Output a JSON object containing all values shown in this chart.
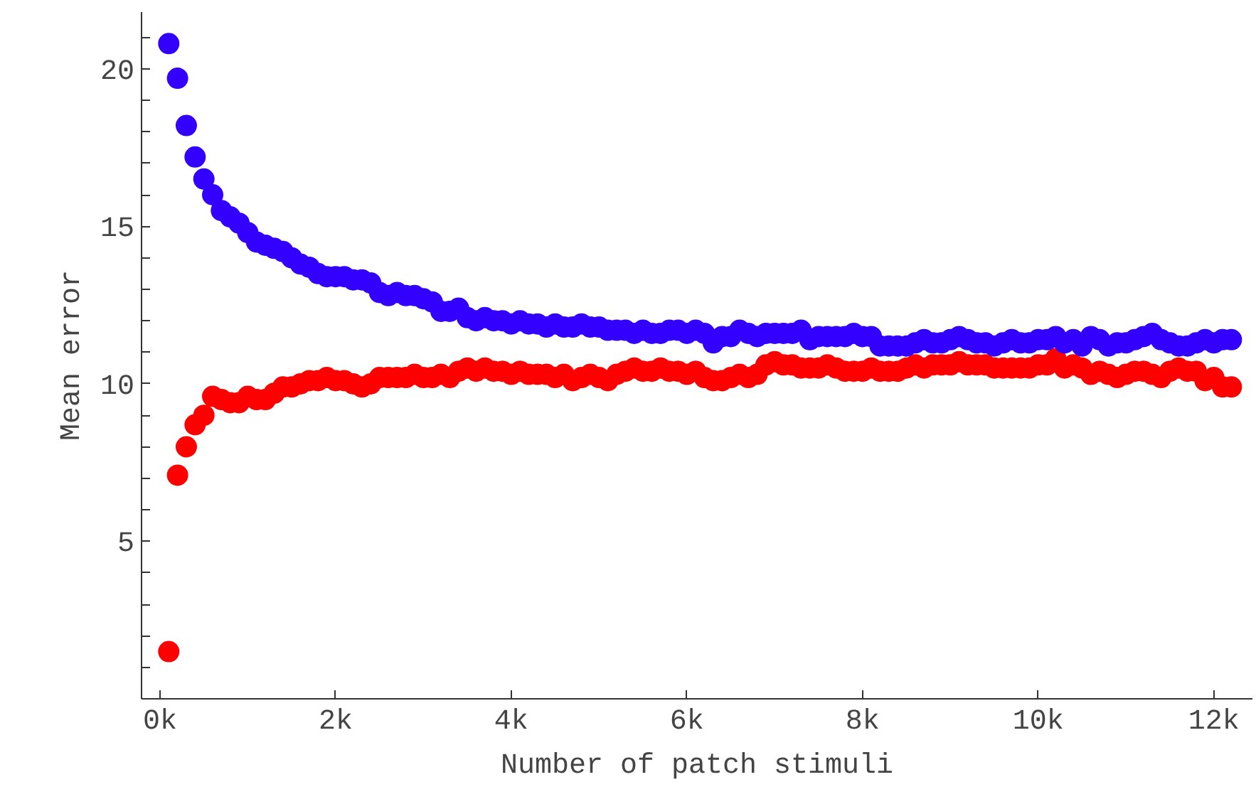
{
  "chart_data": {
    "type": "scatter",
    "xlabel": "Number of patch stimuli",
    "ylabel": "Mean error",
    "x": [
      100,
      200,
      300,
      400,
      500,
      600,
      700,
      800,
      900,
      1000,
      1100,
      1200,
      1300,
      1400,
      1500,
      1600,
      1700,
      1800,
      1900,
      2000,
      2100,
      2200,
      2300,
      2400,
      2500,
      2600,
      2700,
      2800,
      2900,
      3000,
      3100,
      3200,
      3300,
      3400,
      3500,
      3600,
      3700,
      3800,
      3900,
      4000,
      4100,
      4200,
      4300,
      4400,
      4500,
      4600,
      4700,
      4800,
      4900,
      5000,
      5100,
      5200,
      5300,
      5400,
      5500,
      5600,
      5700,
      5800,
      5900,
      6000,
      6100,
      6200,
      6300,
      6400,
      6500,
      6600,
      6700,
      6800,
      6900,
      7000,
      7100,
      7200,
      7300,
      7400,
      7500,
      7600,
      7700,
      7800,
      7900,
      8000,
      8100,
      8200,
      8300,
      8400,
      8500,
      8600,
      8700,
      8800,
      8900,
      9000,
      9100,
      9200,
      9300,
      9400,
      9500,
      9600,
      9700,
      9800,
      9900,
      10000,
      10100,
      10200,
      10300,
      10400,
      10500,
      10600,
      10700,
      10800,
      10900,
      11000,
      11100,
      11200,
      11300,
      11400,
      11500,
      11600,
      11700,
      11800,
      11900,
      12000,
      12100,
      12200
    ],
    "series": [
      {
        "color": "#ff0000",
        "values": [
          1.5,
          7.1,
          8.0,
          8.7,
          9.0,
          9.6,
          9.5,
          9.4,
          9.4,
          9.6,
          9.5,
          9.5,
          9.7,
          9.9,
          9.9,
          10.0,
          10.1,
          10.1,
          10.2,
          10.1,
          10.1,
          10.0,
          9.9,
          10.0,
          10.2,
          10.2,
          10.2,
          10.2,
          10.3,
          10.2,
          10.2,
          10.3,
          10.2,
          10.4,
          10.5,
          10.4,
          10.5,
          10.4,
          10.4,
          10.3,
          10.4,
          10.3,
          10.3,
          10.3,
          10.2,
          10.3,
          10.1,
          10.2,
          10.3,
          10.2,
          10.1,
          10.3,
          10.4,
          10.5,
          10.4,
          10.4,
          10.5,
          10.4,
          10.4,
          10.3,
          10.4,
          10.2,
          10.1,
          10.1,
          10.2,
          10.3,
          10.2,
          10.3,
          10.6,
          10.7,
          10.6,
          10.6,
          10.5,
          10.5,
          10.5,
          10.6,
          10.5,
          10.4,
          10.4,
          10.4,
          10.5,
          10.4,
          10.4,
          10.4,
          10.5,
          10.6,
          10.5,
          10.6,
          10.6,
          10.6,
          10.7,
          10.6,
          10.6,
          10.6,
          10.5,
          10.5,
          10.5,
          10.5,
          10.5,
          10.6,
          10.6,
          10.8,
          10.5,
          10.6,
          10.5,
          10.3,
          10.4,
          10.3,
          10.2,
          10.3,
          10.4,
          10.4,
          10.3,
          10.2,
          10.4,
          10.5,
          10.4,
          10.4,
          10.1,
          10.2,
          9.9,
          9.9
        ]
      },
      {
        "color": "#3300ff",
        "values": [
          20.8,
          19.7,
          18.2,
          17.2,
          16.5,
          16.0,
          15.5,
          15.3,
          15.1,
          14.8,
          14.5,
          14.4,
          14.3,
          14.2,
          14.0,
          13.8,
          13.7,
          13.5,
          13.4,
          13.4,
          13.4,
          13.3,
          13.3,
          13.2,
          12.9,
          12.8,
          12.9,
          12.8,
          12.8,
          12.7,
          12.6,
          12.3,
          12.3,
          12.4,
          12.1,
          12.0,
          12.1,
          12.0,
          12.0,
          11.9,
          12.0,
          11.9,
          11.9,
          11.8,
          11.9,
          11.8,
          11.8,
          11.9,
          11.8,
          11.8,
          11.7,
          11.7,
          11.7,
          11.6,
          11.7,
          11.6,
          11.6,
          11.7,
          11.7,
          11.6,
          11.7,
          11.6,
          11.3,
          11.5,
          11.5,
          11.7,
          11.6,
          11.5,
          11.6,
          11.6,
          11.6,
          11.6,
          11.7,
          11.4,
          11.5,
          11.5,
          11.5,
          11.5,
          11.6,
          11.5,
          11.5,
          11.2,
          11.2,
          11.2,
          11.2,
          11.3,
          11.4,
          11.3,
          11.3,
          11.4,
          11.5,
          11.4,
          11.3,
          11.3,
          11.2,
          11.3,
          11.4,
          11.3,
          11.3,
          11.4,
          11.4,
          11.5,
          11.3,
          11.4,
          11.2,
          11.5,
          11.4,
          11.2,
          11.3,
          11.3,
          11.4,
          11.5,
          11.6,
          11.4,
          11.3,
          11.2,
          11.2,
          11.3,
          11.4,
          11.3,
          11.4,
          11.4
        ]
      }
    ],
    "xlim": [
      -210,
      12440
    ],
    "ylim": [
      0,
      21.8
    ],
    "xticks": [
      {
        "value": 0,
        "label": "0k"
      },
      {
        "value": 2000,
        "label": "2k"
      },
      {
        "value": 4000,
        "label": "4k"
      },
      {
        "value": 6000,
        "label": "6k"
      },
      {
        "value": 8000,
        "label": "8k"
      },
      {
        "value": 10000,
        "label": "10k"
      },
      {
        "value": 12000,
        "label": "12k"
      }
    ],
    "yticks": [
      {
        "value": 1,
        "label": null
      },
      {
        "value": 2,
        "label": null
      },
      {
        "value": 3,
        "label": null
      },
      {
        "value": 4,
        "label": null
      },
      5,
      {
        "value": 6,
        "label": null
      },
      {
        "value": 7,
        "label": null
      },
      {
        "value": 8,
        "label": null
      },
      {
        "value": 9,
        "label": null
      },
      10,
      {
        "value": 11,
        "label": null
      },
      {
        "value": 12,
        "label": null
      },
      {
        "value": 13,
        "label": null
      },
      {
        "value": 14,
        "label": null
      },
      15,
      {
        "value": 16,
        "label": null
      },
      {
        "value": 17,
        "label": null
      },
      {
        "value": 18,
        "label": null
      },
      {
        "value": 19,
        "label": null
      },
      20,
      {
        "value": 21,
        "label": null
      }
    ],
    "grid": false,
    "marker": "circle"
  }
}
